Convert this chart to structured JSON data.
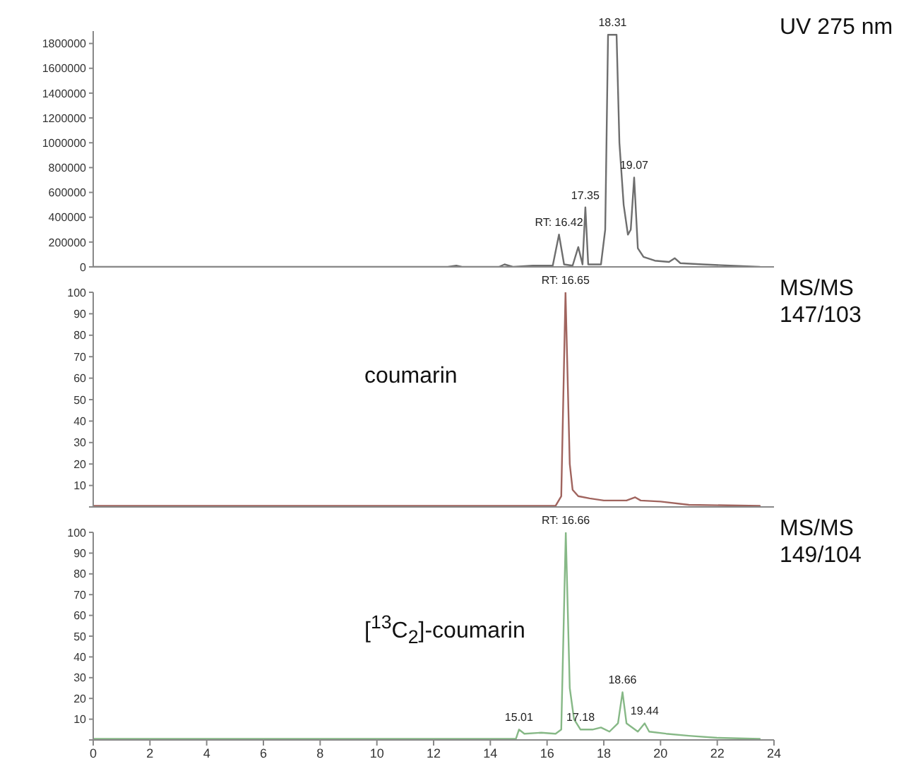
{
  "chart_data": [
    {
      "type": "line",
      "tick_labels": "y",
      "xlim": [
        0,
        24
      ],
      "xticks": [
        0,
        2,
        4,
        6,
        8,
        10,
        12,
        14,
        16,
        18,
        20,
        22,
        24
      ],
      "ylim": [
        0,
        1900000
      ],
      "yticks": [
        0,
        200000,
        400000,
        600000,
        800000,
        1000000,
        1200000,
        1400000,
        1600000,
        1800000
      ],
      "grid": false,
      "legend": false,
      "marker": "none",
      "line_style": "solid",
      "series": [
        {
          "color": "#6e6e6e",
          "x": [
            0,
            5,
            10,
            12.5,
            12.8,
            13,
            14.3,
            14.5,
            14.8,
            15.5,
            16.2,
            16.42,
            16.6,
            16.9,
            17.1,
            17.25,
            17.35,
            17.45,
            17.9,
            18.05,
            18.15,
            18.45,
            18.55,
            18.7,
            18.85,
            18.95,
            19.07,
            19.2,
            19.4,
            19.8,
            20.3,
            20.5,
            20.7,
            21.5,
            23.5
          ],
          "values": [
            0,
            0,
            0,
            0,
            10000,
            0,
            0,
            20000,
            0,
            10000,
            10000,
            260000,
            20000,
            10000,
            160000,
            20000,
            480000,
            20000,
            20000,
            300000,
            1870000,
            1870000,
            1000000,
            500000,
            260000,
            300000,
            720000,
            150000,
            80000,
            50000,
            40000,
            70000,
            30000,
            20000,
            0
          ]
        }
      ],
      "annotations": [
        "UV 275 nm",
        {
          "text": "RT: 16.42",
          "x": 16.42,
          "y": 260000
        },
        {
          "text": "17.35",
          "x": 17.35,
          "y": 480000
        },
        {
          "text": "18.31",
          "x": 18.31,
          "y": 1870000
        },
        {
          "text": "19.07",
          "x": 19.07,
          "y": 720000
        }
      ]
    },
    {
      "type": "line",
      "tick_labels": "y",
      "xlim": [
        0,
        24
      ],
      "xticks": [
        0,
        2,
        4,
        6,
        8,
        10,
        12,
        14,
        16,
        18,
        20,
        22,
        24
      ],
      "ylim": [
        0,
        100
      ],
      "yticks": [
        {
          "value": 0,
          "label": null
        },
        10,
        20,
        30,
        40,
        50,
        60,
        70,
        80,
        90,
        100
      ],
      "grid": false,
      "legend": false,
      "marker": "none",
      "line_style": "solid",
      "series": [
        {
          "color": "#a0645e",
          "x": [
            0,
            16.3,
            16.5,
            16.65,
            16.8,
            16.9,
            17.1,
            17.5,
            18,
            18.8,
            19.1,
            19.3,
            20,
            21,
            23.5
          ],
          "values": [
            0.5,
            0.5,
            5,
            100,
            20,
            8,
            5,
            4,
            3,
            3,
            4.5,
            3,
            2.5,
            1,
            0.5
          ]
        }
      ],
      "annotations": [
        "MS/MS 147/103",
        "coumarin",
        {
          "text": "RT: 16.65",
          "x": 16.65,
          "y": 100
        }
      ]
    },
    {
      "type": "line",
      "xlim": [
        0,
        24
      ],
      "xticks": [
        0,
        2,
        4,
        6,
        8,
        10,
        12,
        14,
        16,
        18,
        20,
        22,
        24
      ],
      "ylim": [
        0,
        100
      ],
      "yticks": [
        {
          "value": 0,
          "label": null
        },
        10,
        20,
        30,
        40,
        50,
        60,
        70,
        80,
        90,
        100
      ],
      "grid": false,
      "legend": false,
      "marker": "none",
      "line_style": "solid",
      "series": [
        {
          "color": "#86b886",
          "x": [
            0,
            14.9,
            15.01,
            15.2,
            15.8,
            16.3,
            16.5,
            16.66,
            16.8,
            16.95,
            17.18,
            17.6,
            17.9,
            18.2,
            18.5,
            18.66,
            18.8,
            19.2,
            19.44,
            19.6,
            20.2,
            21,
            22,
            23.5
          ],
          "values": [
            0.5,
            0.5,
            5,
            3,
            3.5,
            3,
            5,
            100,
            25,
            10,
            5,
            5,
            6,
            4,
            8,
            23,
            8,
            4,
            8,
            4,
            3,
            2,
            1,
            0.5
          ]
        }
      ],
      "annotations": [
        "MS/MS 149/104",
        "[$^{13}$C$_{2}$]-coumarin",
        {
          "text": "RT: 16.66",
          "x": 16.66,
          "y": 100
        },
        {
          "text": "15.01",
          "x": 15.01,
          "y": 5
        },
        {
          "text": "17.18",
          "x": 17.18,
          "y": 5
        },
        {
          "text": "18.66",
          "x": 18.66,
          "y": 23
        },
        {
          "text": "19.44",
          "x": 19.44,
          "y": 8
        }
      ]
    }
  ]
}
